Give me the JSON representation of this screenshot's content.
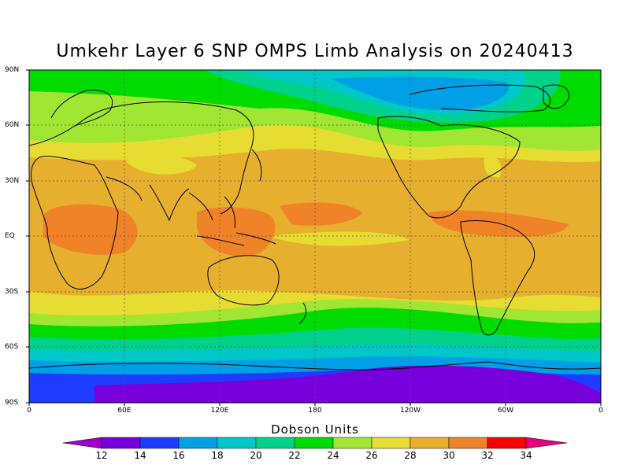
{
  "title": "Umkehr Layer 6 SNP OMPS Limb Analysis on 20240413",
  "lat_labels": [
    "90N",
    "60N",
    "30N",
    "EQ",
    "30S",
    "60S",
    "90S"
  ],
  "lon_labels": [
    "0",
    "60E",
    "120E",
    "180",
    "120W",
    "60W",
    "0"
  ],
  "colorbar": {
    "title": "Dobson Units",
    "ticks": [
      "12",
      "14",
      "16",
      "18",
      "20",
      "22",
      "24",
      "26",
      "28",
      "30",
      "32",
      "34"
    ],
    "colors": [
      "#a000c8",
      "#7800dc",
      "#1e3cff",
      "#00a0e6",
      "#00c8c8",
      "#00d28c",
      "#00dc00",
      "#a0e632",
      "#e6dc32",
      "#e6af2d",
      "#f08228",
      "#fa0000",
      "#e6007a"
    ]
  },
  "chart_data": {
    "type": "heatmap",
    "title": "Umkehr Layer 6 SNP OMPS Limb Analysis on 20240413",
    "units": "Dobson Units",
    "xlim": [
      0,
      360
    ],
    "ylim": [
      -90,
      90
    ],
    "x_ticks": [
      0,
      60,
      120,
      180,
      240,
      300,
      360
    ],
    "y_ticks": [
      90,
      60,
      30,
      0,
      -30,
      -60,
      -90
    ],
    "levels": [
      12,
      14,
      16,
      18,
      20,
      22,
      24,
      26,
      28,
      30,
      32,
      34
    ],
    "zonal_profile": [
      {
        "lat": 90,
        "value": 23
      },
      {
        "lat": 75,
        "value": 24
      },
      {
        "lat": 60,
        "value": 26
      },
      {
        "lat": 45,
        "value": 28
      },
      {
        "lat": 30,
        "value": 29
      },
      {
        "lat": 15,
        "value": 30
      },
      {
        "lat": 0,
        "value": 30
      },
      {
        "lat": -15,
        "value": 30
      },
      {
        "lat": -30,
        "value": 29
      },
      {
        "lat": -40,
        "value": 27
      },
      {
        "lat": -50,
        "value": 24
      },
      {
        "lat": -60,
        "value": 21
      },
      {
        "lat": -70,
        "value": 17
      },
      {
        "lat": -80,
        "value": 14
      },
      {
        "lat": -90,
        "value": 13
      }
    ],
    "features": [
      {
        "lon": 40,
        "lat": 5,
        "value": 31
      },
      {
        "lon": 150,
        "lat": 5,
        "value": 31
      },
      {
        "lon": 250,
        "lat": 0,
        "value": 31
      },
      {
        "lon": 260,
        "lat": 75,
        "value": 19
      },
      {
        "lon": 270,
        "lat": -80,
        "value": 12
      }
    ]
  }
}
